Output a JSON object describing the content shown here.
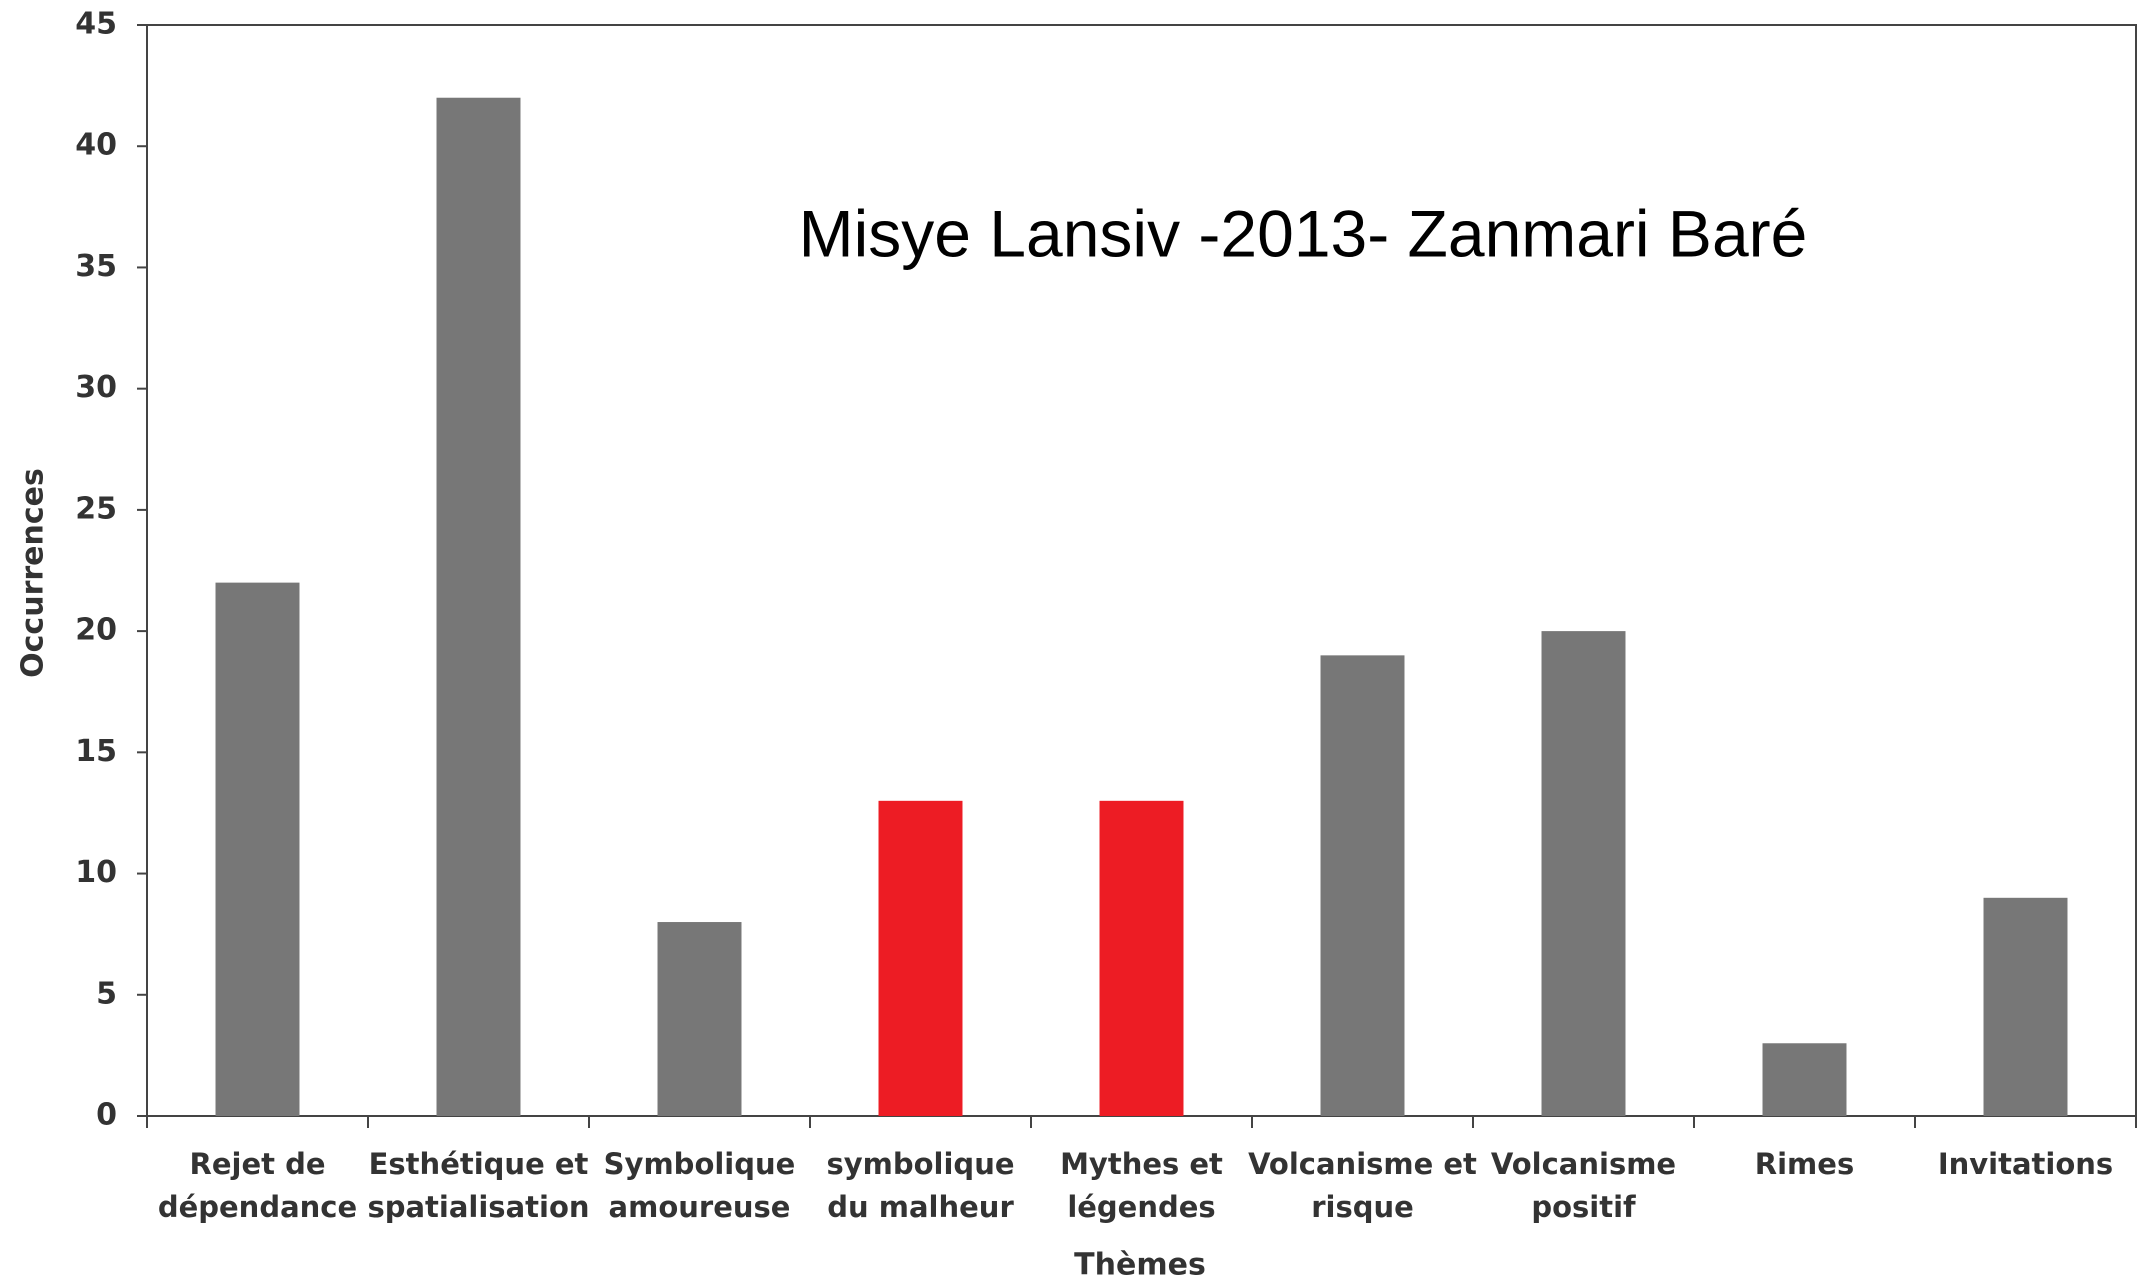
{
  "chart_data": {
    "type": "bar",
    "annotation": "Misye Lansiv -2013- Zanmari Baré",
    "x_label": "Thèmes",
    "y_label": "Occurrences",
    "categories": [
      [
        "Rejet de",
        "dépendance"
      ],
      [
        "Esthétique et",
        "spatialisation"
      ],
      [
        "Symbolique",
        "amoureuse"
      ],
      [
        "symbolique",
        "du malheur"
      ],
      [
        "Mythes et",
        "légendes"
      ],
      [
        "Volcanisme et",
        "risque"
      ],
      [
        "Volcanisme",
        "positif"
      ],
      [
        "Rimes"
      ],
      [
        "Invitations"
      ]
    ],
    "values": [
      22,
      42,
      8,
      13,
      13,
      19,
      20,
      3,
      9
    ],
    "colors": [
      "#777777",
      "#777777",
      "#777777",
      "#ed1c24",
      "#ed1c24",
      "#777777",
      "#777777",
      "#777777",
      "#777777"
    ],
    "ylim": [
      0,
      45
    ],
    "yticks": [
      0,
      5,
      10,
      15,
      20,
      25,
      30,
      35,
      40,
      45
    ],
    "grid": false
  }
}
